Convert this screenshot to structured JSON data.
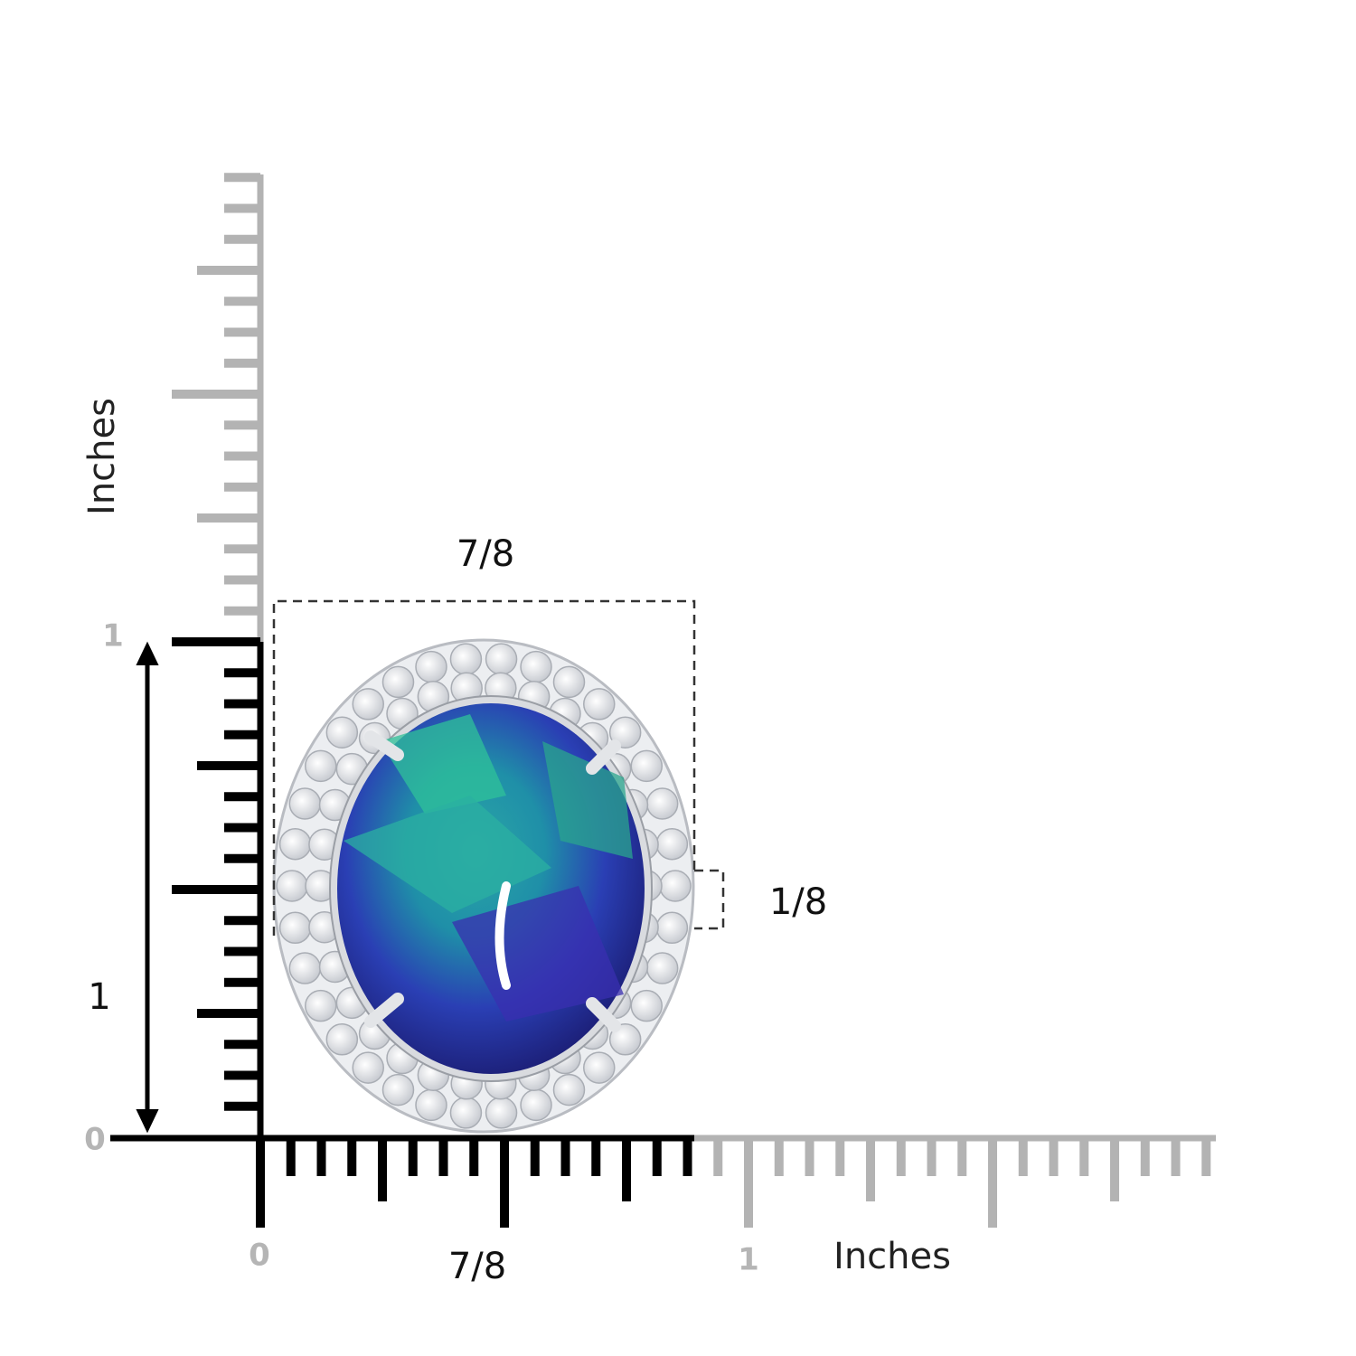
{
  "vertical_ruler": {
    "title": "Inches",
    "labels": [
      "1",
      "0"
    ]
  },
  "horizontal_ruler": {
    "title": "Inches",
    "labels": [
      "0",
      "1"
    ]
  },
  "dimensions": {
    "top_width": "7/8",
    "band_width": "1/8",
    "height": "1",
    "bottom_width": "7/8"
  }
}
